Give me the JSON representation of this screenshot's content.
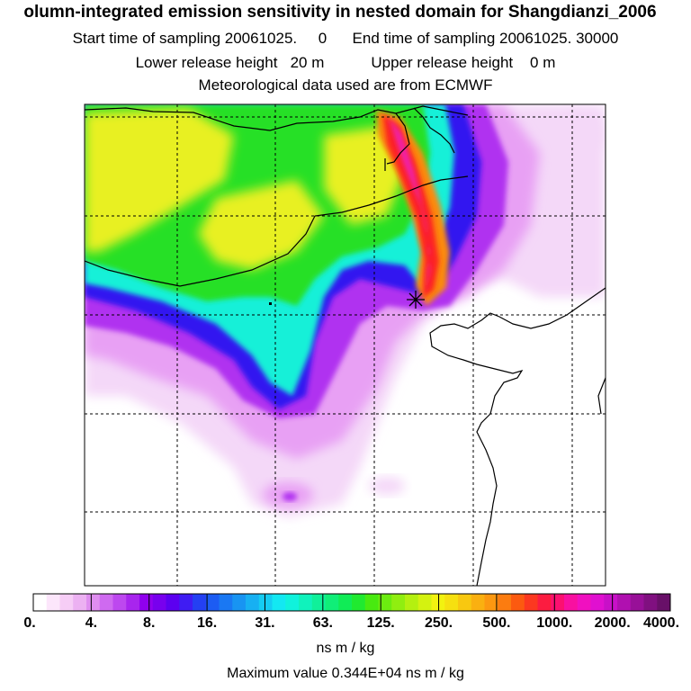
{
  "header": {
    "title": "olumn-integrated emission sensitivity in nested domain for Shangdianzi_2006",
    "sampling": "Start time of sampling 20061025.     0      End time of sampling 20061025. 30000",
    "release": "Lower release height   20 m           Upper release height    0 m",
    "met": "Meteorological data used are from ECMWF"
  },
  "colorbar": {
    "tick_labels": [
      "0.",
      "4.",
      "8.",
      "16.",
      "31.",
      "63.",
      "125.",
      "250.",
      "500.",
      "1000.",
      "2000.",
      "4000."
    ],
    "unit": "ns m / kg",
    "max_value": "Maximum value  0.344E+04 ns m / kg",
    "colors": [
      "#ffffff",
      "#fce6fb",
      "#f6cdf6",
      "#ecb1f2",
      "#df8ef0",
      "#cf6af0",
      "#bd48ef",
      "#a825ee",
      "#9000ee",
      "#7800ee",
      "#5c00f0",
      "#3f1cf3",
      "#2440f3",
      "#1c5cf3",
      "#1a78f3",
      "#1894f2",
      "#17b0f2",
      "#15ccf2",
      "#13e8f2",
      "#10f2dc",
      "#10f2bc",
      "#10f09a",
      "#10ee78",
      "#10ec56",
      "#20ea30",
      "#48ea10",
      "#6cec10",
      "#90ee10",
      "#b4f010",
      "#d4f210",
      "#f2f210",
      "#f6e010",
      "#f8c810",
      "#fab010",
      "#fc9810",
      "#fc7c10",
      "#fc5a10",
      "#fc3820",
      "#fc1c40",
      "#fc1070",
      "#f810a0",
      "#f010c0",
      "#e010d0",
      "#c810c8",
      "#b010b0",
      "#981098",
      "#801080",
      "#681068"
    ]
  },
  "map": {
    "receptor_marker": "receptor-star",
    "colors": {
      "green": "#28e028",
      "yellow": "#e8f020",
      "cyan": "#18f0d8",
      "blue": "#3018f0",
      "purple": "#b030f0",
      "lilac": "#e8a0f4",
      "pink": "#f4d8f8",
      "red": "#fc2020",
      "orange": "#fc8a10",
      "magenta": "#f020b0"
    }
  }
}
